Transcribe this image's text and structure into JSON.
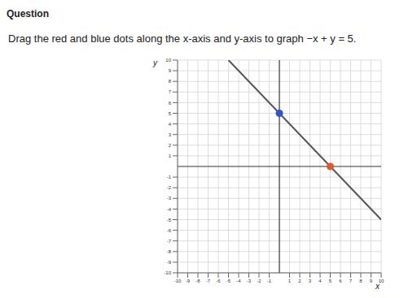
{
  "header": "Question",
  "prompt": "Drag the red and blue dots along the x-axis and y-axis to graph −x + y = 5.",
  "chart_data": {
    "type": "scatter",
    "x_label": "x",
    "y_label": "y",
    "xlim": [
      -10,
      10
    ],
    "ylim": [
      -10,
      10
    ],
    "xticks": [
      -10,
      -9,
      -8,
      -7,
      -6,
      -5,
      -4,
      -3,
      -2,
      -1,
      1,
      2,
      3,
      4,
      5,
      6,
      7,
      8,
      9,
      10
    ],
    "yticks": [
      -10,
      -9,
      -8,
      -7,
      -6,
      -5,
      -4,
      -3,
      -2,
      -1,
      1,
      2,
      3,
      4,
      5,
      6,
      7,
      8,
      9,
      10
    ],
    "grid": true,
    "series": [
      {
        "type": "line",
        "color": "#555555",
        "x": [
          -5,
          10
        ],
        "values": [
          10,
          -5
        ]
      },
      {
        "type": "scatter",
        "color": "#2f55c8",
        "marker": "circle",
        "x": [
          0
        ],
        "values": [
          5
        ]
      },
      {
        "type": "scatter",
        "color": "#e4572e",
        "marker": "circle",
        "x": [
          5
        ],
        "values": [
          0
        ]
      }
    ]
  }
}
